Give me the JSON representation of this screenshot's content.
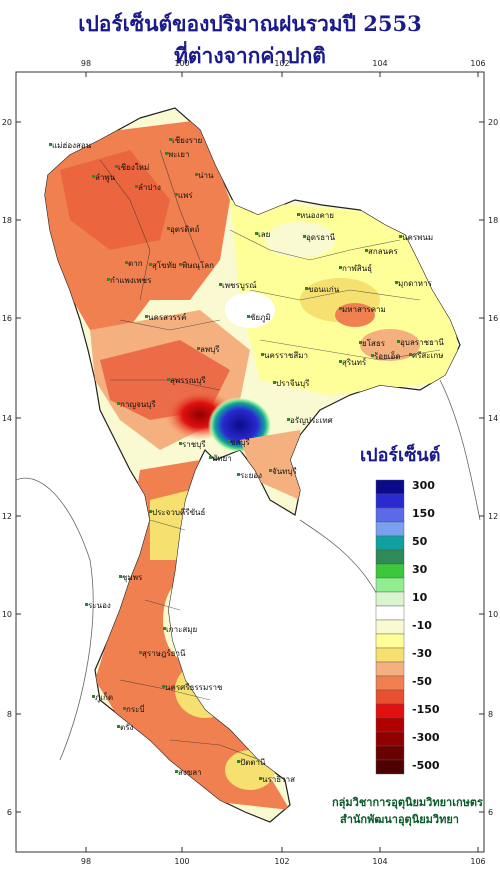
{
  "title": {
    "line1": "เปอร์เซ็นต์ของปริมาณฝนรวมปี 2553",
    "line2": "ที่ต่างจากค่าปกติ"
  },
  "axes": {
    "x_ticks": [
      "98",
      "100",
      "102",
      "104",
      "106"
    ],
    "y_ticks": [
      "20",
      "18",
      "16",
      "14",
      "12",
      "10",
      "8",
      "6"
    ]
  },
  "legend": {
    "title": "เปอร์เซ็นต์",
    "bins": [
      {
        "color": "#0a0a8a",
        "label": "300"
      },
      {
        "color": "#2a2ad0",
        "label": ""
      },
      {
        "color": "#5a6ae8",
        "label": "150"
      },
      {
        "color": "#7aa0f0",
        "label": ""
      },
      {
        "color": "#10a0a0",
        "label": "50"
      },
      {
        "color": "#2e8b57",
        "label": ""
      },
      {
        "color": "#3cc83c",
        "label": "30"
      },
      {
        "color": "#90ee90",
        "label": ""
      },
      {
        "color": "#d8f5d0",
        "label": "10"
      },
      {
        "color": "#ffffff",
        "label": ""
      },
      {
        "color": "#fafad2",
        "label": "-10"
      },
      {
        "color": "#ffff99",
        "label": ""
      },
      {
        "color": "#f5e070",
        "label": "-30"
      },
      {
        "color": "#f5b080",
        "label": ""
      },
      {
        "color": "#f08050",
        "label": "-50"
      },
      {
        "color": "#e85030",
        "label": ""
      },
      {
        "color": "#e01010",
        "label": "-150"
      },
      {
        "color": "#b00000",
        "label": ""
      },
      {
        "color": "#900000",
        "label": "-300"
      },
      {
        "color": "#6a0000",
        "label": ""
      },
      {
        "color": "#500000",
        "label": "-500"
      }
    ]
  },
  "places": [
    "เชียงราย",
    "แม่ฮ่องสอน",
    "เชียงใหม่",
    "ลำพูน",
    "พะเยา",
    "น่าน",
    "ลำปาง",
    "แพร่",
    "อุตรดิตถ์",
    "หนองคาย",
    "เลย",
    "อุดรธานี",
    "สกลนคร",
    "นครพนม",
    "ตาก",
    "สุโขทัย",
    "พิษณุโลก",
    "กาฬสินธุ์",
    "มุกดาหาร",
    "กำแพงเพชร",
    "เพชรบูรณ์",
    "ขอนแก่น",
    "นครสวรรค์",
    "ชัยภูมิ",
    "มหาสารคาม",
    "ยโสธร",
    "อุบลราชธานี",
    "ลพบุรี",
    "ร้อยเอ็ด",
    "นครราชสีมา",
    "สุรินทร์",
    "ศรีสะเกษ",
    "สุพรรณบุรี",
    "ปราจีนบุรี",
    "อรัญประเทศ",
    "กาญจนบุรี",
    "ราชบุรี",
    "ชลบุรี",
    "พัทยา",
    "ระยอง",
    "จันทบุรี",
    "ประจวบคีรีขันธ์",
    "ชุมพร",
    "ระนอง",
    "สุราษฎร์ธานี",
    "เกาะสมุย",
    "นครศรีธรรมราช",
    "ภูเก็ต",
    "กระบี่",
    "ตรัง",
    "สงขลา",
    "ปัตตานี",
    "นราธิวาส"
  ],
  "credit": {
    "line1": "กลุ่มวิชาการอุตุนิยมวิทยาเกษตร",
    "line2": "สำนักพัฒนาอุตุนิยมวิทยา"
  }
}
